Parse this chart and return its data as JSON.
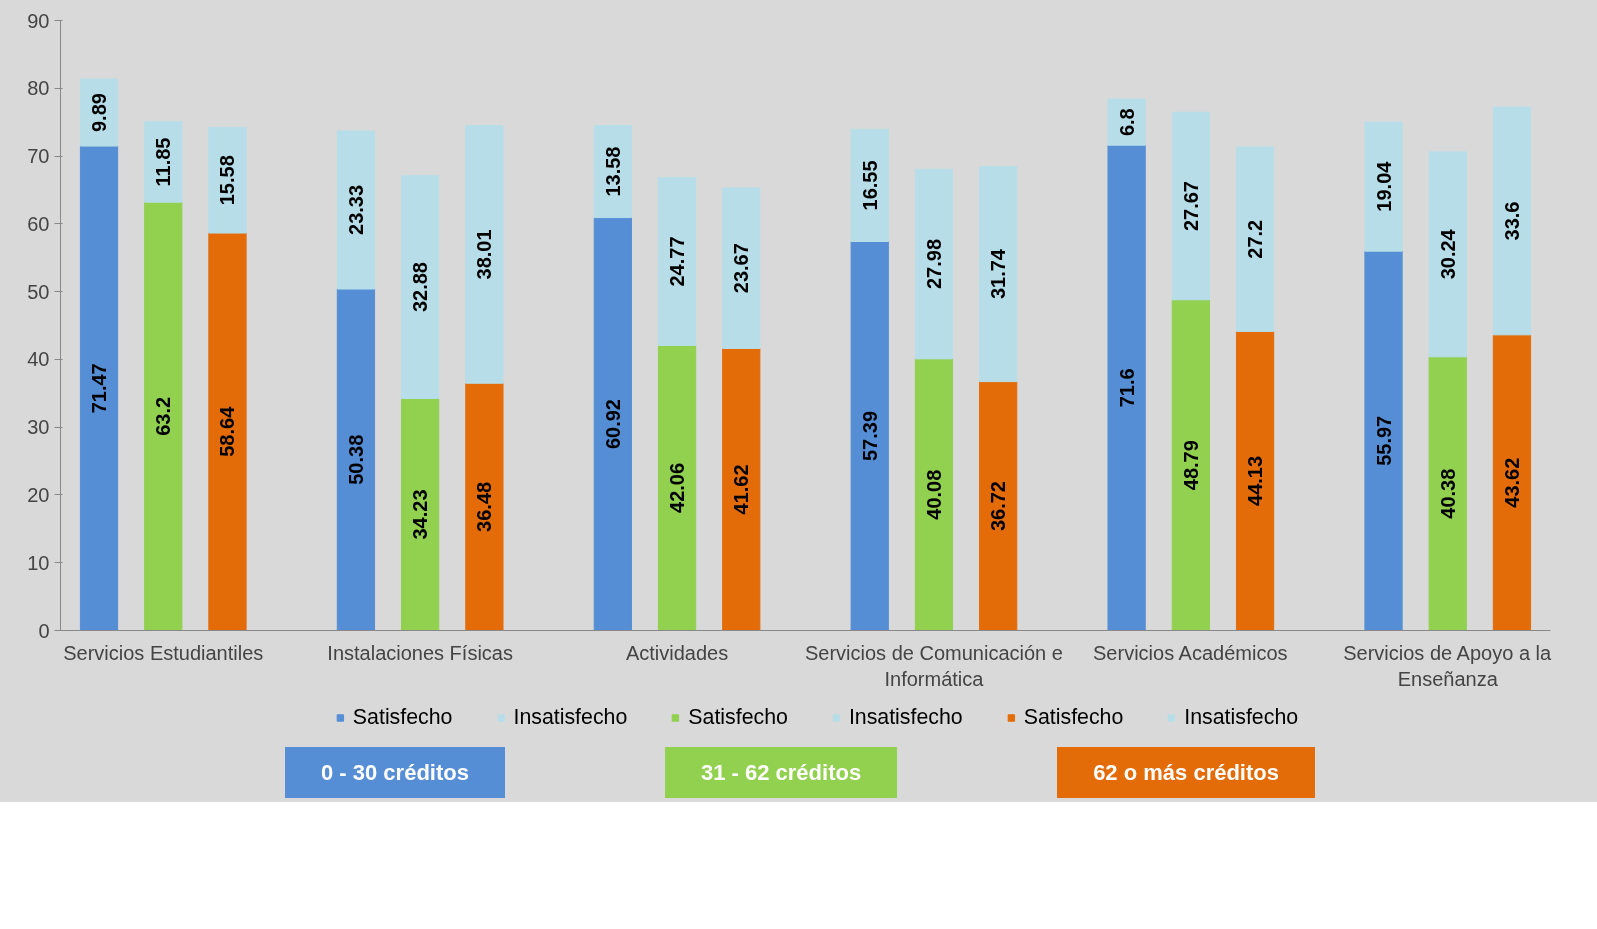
{
  "chart_data": {
    "type": "bar",
    "stacked": true,
    "data_labels": true,
    "legend": "bottom",
    "grid": false,
    "ylim": [
      0,
      90
    ],
    "yticks": [
      0,
      10,
      20,
      30,
      40,
      50,
      60,
      70,
      80,
      90
    ],
    "categories": [
      null,
      "Servicios Estudiantiles",
      null,
      null,
      null,
      "Instalaciones Físicas",
      null,
      null,
      null,
      "Actividades",
      null,
      null,
      null,
      "Servicios de Comunicación e Informática",
      null,
      null,
      null,
      "Servicios Académicos",
      null,
      null,
      null,
      "Servicios de Apoyo a la Enseñanza",
      null,
      null
    ],
    "series": [
      {
        "name": "Satisfecho",
        "color": "#558ed5",
        "values": [
          71.47,
          null,
          null,
          null,
          50.38,
          null,
          null,
          null,
          60.92,
          null,
          null,
          null,
          57.39,
          null,
          null,
          null,
          71.6,
          null,
          null,
          null,
          55.97,
          null,
          null,
          null
        ]
      },
      {
        "name": "Insatisfecho",
        "color": "#b7dee8",
        "values": [
          9.89,
          null,
          null,
          null,
          23.33,
          null,
          null,
          null,
          13.58,
          null,
          null,
          null,
          16.55,
          null,
          null,
          null,
          6.8,
          null,
          null,
          null,
          19.04,
          null,
          null,
          null
        ]
      },
      {
        "name": "Satisfecho",
        "color": "#92d050",
        "values": [
          null,
          63.2,
          null,
          null,
          null,
          34.23,
          null,
          null,
          null,
          42.06,
          null,
          null,
          null,
          40.08,
          null,
          null,
          null,
          48.79,
          null,
          null,
          null,
          40.38,
          null,
          null
        ]
      },
      {
        "name": "Insatisfecho",
        "color": "#b7dee8",
        "values": [
          null,
          11.85,
          null,
          null,
          null,
          32.88,
          null,
          null,
          null,
          24.77,
          null,
          null,
          null,
          27.98,
          null,
          null,
          null,
          27.67,
          null,
          null,
          null,
          30.24,
          null,
          null
        ]
      },
      {
        "name": "Satisfecho",
        "color": "#e36c09",
        "values": [
          null,
          null,
          58.64,
          null,
          null,
          null,
          36.48,
          null,
          null,
          null,
          41.62,
          null,
          null,
          null,
          36.72,
          null,
          null,
          null,
          44.13,
          null,
          null,
          null,
          43.62,
          null
        ]
      },
      {
        "name": "Insatisfecho",
        "color": "#b7dee8",
        "values": [
          null,
          null,
          15.58,
          null,
          null,
          null,
          38.01,
          null,
          null,
          null,
          23.67,
          null,
          null,
          null,
          31.74,
          null,
          null,
          null,
          27.2,
          null,
          null,
          null,
          33.6,
          null
        ]
      }
    ],
    "annotations": [
      "0 - 30 créditos",
      "31 - 62 créditos",
      "62 o más créditos"
    ]
  }
}
